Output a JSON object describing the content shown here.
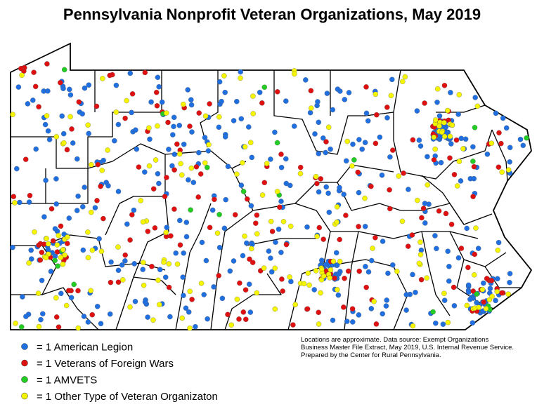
{
  "title": "Pennsylvania Nonprofit Veteran Organizations, May 2019",
  "legend": [
    {
      "label": "= 1 American Legion",
      "color": "#1f6fe0"
    },
    {
      "label": "= 1 Veterans of Foreign Wars",
      "color": "#e01010"
    },
    {
      "label": "= 1 AMVETS",
      "color": "#22cc22"
    },
    {
      "label": "= 1 Other Type of Veteran Organizaton",
      "color": "#f5f500"
    }
  ],
  "note": [
    "Locations are approximate. Data source: Exempt Organizations",
    "Business Master File Extract, May 2019, U.S. Internal Revenue Service.",
    "Prepared by the Center for Rural Pennsylvania."
  ]
}
